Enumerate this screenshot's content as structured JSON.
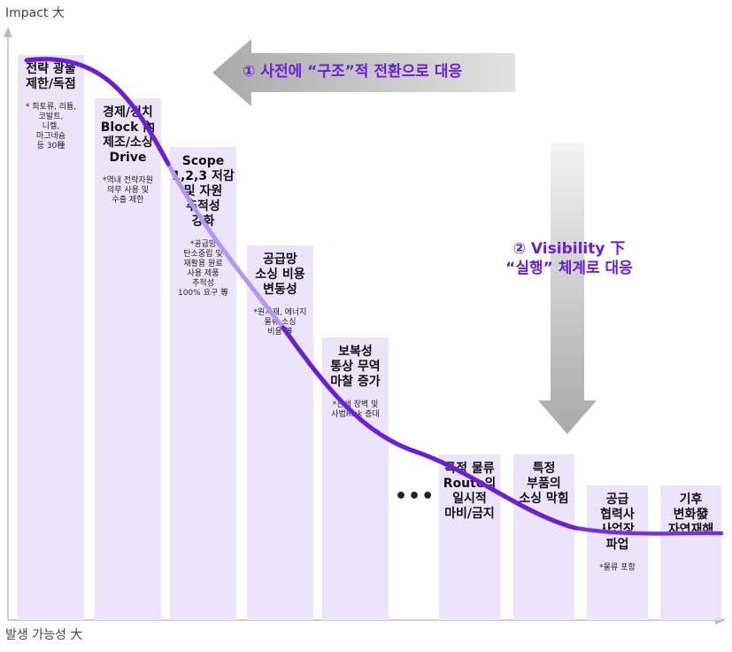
{
  "axes": {
    "y_label": "Impact 大",
    "x_label": "발생 가능성 大"
  },
  "callouts": {
    "proactive": "① 사전에 “구조”적 전환으로 대응",
    "visibility": "② Visibility 下\n“실행” 체계로 대응"
  },
  "ellipsis": "•••",
  "columns": [
    {
      "title": "전략 광물\n제한/독점",
      "note": "* 희토류, 리튬,\n코발트,\n니켈,\n마그네슘\n등 30種",
      "level": 0.92
    },
    {
      "title": "경제/정치\nBlock 內\n제조/소싱\nDrive",
      "note": "*역내 전략자원\n의무 사용 및\n수출 제한",
      "level": 0.85
    },
    {
      "title": "Scope\n1,2,3 저감\n및 자원\n추적성\n강화",
      "note": "*공급망\n탄소중립 및\n재활용 원료\n사용 제품\n추적성\n100% 요구 等",
      "level": 0.77
    },
    {
      "title": "공급망\n소싱 비용\n변동성",
      "note": "*원자재, 에너지\n물류 소싱\n비용 等",
      "level": 0.61
    },
    {
      "title": "보복성\n통상 무역\n마찰 증가",
      "note": "*관세 장벽 및\n사법Risk 증대",
      "level": 0.46
    },
    {
      "title": "특정 물류\nRoute의\n일시적\n마비/금지",
      "note": "",
      "level": 0.27
    },
    {
      "title": "특정\n부품의\n소싱 막힘",
      "note": "",
      "level": 0.27
    },
    {
      "title": "공급\n협력사\n사업장\n파업",
      "note": "*물류 포함",
      "level": 0.22
    },
    {
      "title": "기후\n변화發\n자연재해",
      "note": "",
      "level": 0.22
    }
  ],
  "colors": {
    "column_fill": "#ebe4fb",
    "curve_dark": "#6a1fd6",
    "curve_light": "#b596f2",
    "arrow_gray": "#cfcfcf",
    "callout_text": "#6a1fd6"
  },
  "icons": {
    "left_arrow": "left-arrow-icon",
    "down_arrow": "down-arrow-icon"
  }
}
